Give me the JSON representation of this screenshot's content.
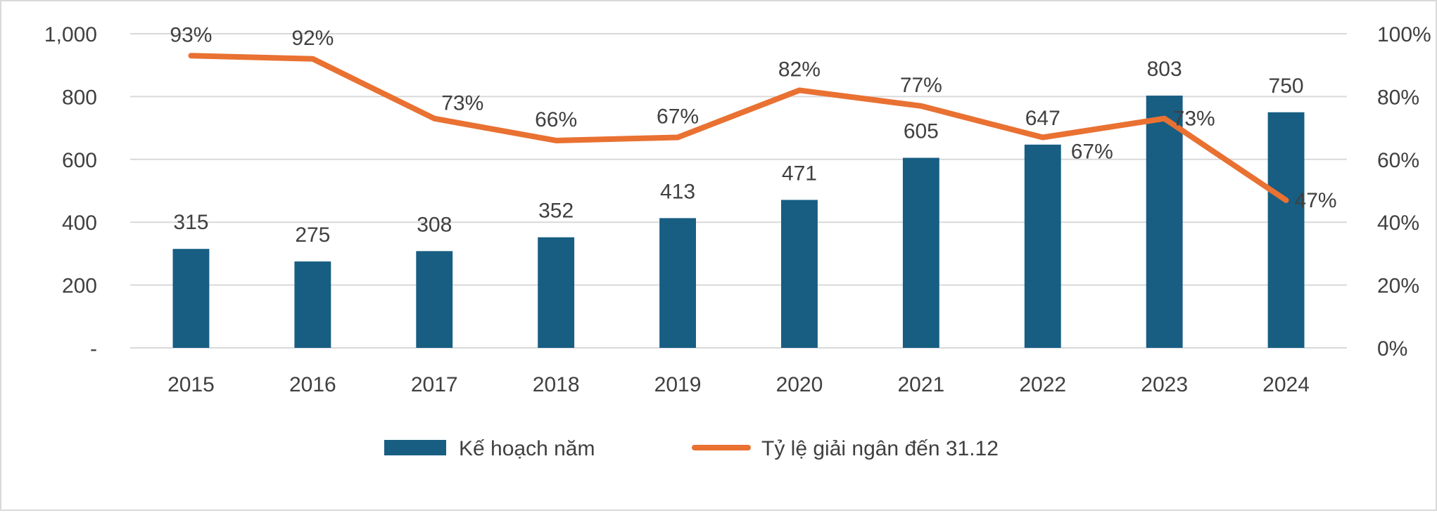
{
  "chart_data": {
    "type": "bar+line",
    "categories": [
      "2015",
      "2016",
      "2017",
      "2018",
      "2019",
      "2020",
      "2021",
      "2022",
      "2023",
      "2024"
    ],
    "series": [
      {
        "name": "Kế hoạch năm",
        "type": "bar",
        "axis": "left",
        "color": "#175E82",
        "values": [
          315,
          275,
          308,
          352,
          413,
          471,
          605,
          647,
          803,
          750
        ],
        "labels": [
          "315",
          "275",
          "308",
          "352",
          "413",
          "471",
          "605",
          "647",
          "803",
          "750"
        ]
      },
      {
        "name": "Tỷ lệ giải ngân đến 31.12",
        "type": "line",
        "axis": "right",
        "color": "#E97132",
        "values": [
          93,
          92,
          73,
          66,
          67,
          82,
          77,
          67,
          73,
          47
        ],
        "labels": [
          "93%",
          "92%",
          "73%",
          "66%",
          "67%",
          "82%",
          "77%",
          "67%",
          "73%",
          "47%"
        ]
      }
    ],
    "y_left": {
      "range": [
        0,
        1000
      ],
      "ticks": [
        "-",
        "200",
        "400",
        "600",
        "800",
        "1,000"
      ]
    },
    "y_right": {
      "range": [
        0,
        100
      ],
      "ticks": [
        "0%",
        "20%",
        "40%",
        "60%",
        "80%",
        "100%"
      ]
    },
    "grid": true,
    "legend": "bottom"
  }
}
